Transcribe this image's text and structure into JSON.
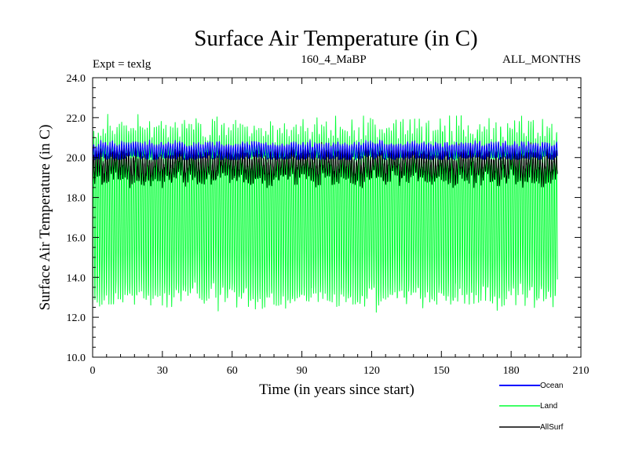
{
  "chart_data": {
    "type": "line",
    "title": "Surface Air Temperature (in C)",
    "subtitle_left": "Expt = texlg",
    "subtitle_center": "160_4_MaBP",
    "subtitle_right": "ALL_MONTHS",
    "xlabel": "Time (in years since start)",
    "ylabel": "Surface Air Temperature (in C)",
    "xlim": [
      0,
      210
    ],
    "ylim": [
      10.0,
      24.0
    ],
    "xticks": [
      0,
      30,
      60,
      90,
      120,
      150,
      180,
      210
    ],
    "xtick_labels": [
      "0",
      "30",
      "60",
      "90",
      "120",
      "150",
      "180",
      "210"
    ],
    "yticks": [
      10.0,
      12.0,
      14.0,
      16.0,
      18.0,
      20.0,
      22.0,
      24.0
    ],
    "ytick_labels": [
      "10.0",
      "12.0",
      "14.0",
      "16.0",
      "18.0",
      "20.0",
      "22.0",
      "24.0"
    ],
    "x_max_data": 199.9,
    "series": [
      {
        "name": "Land",
        "color": "#00ff33",
        "mean": 17.2,
        "seasonal_amplitude": 4.2,
        "max_observed": 22.6,
        "min_observed": 11.9
      },
      {
        "name": "AllSurf",
        "color": "#000000",
        "mean": 19.6,
        "seasonal_amplitude": 0.6,
        "max_observed": 21.0,
        "min_observed": 18.1
      },
      {
        "name": "Ocean",
        "color": "#0000ff",
        "mean": 20.35,
        "seasonal_amplitude": 0.35,
        "max_observed": 21.1,
        "min_observed": 19.9
      }
    ],
    "legend": [
      {
        "name": "Ocean",
        "color": "#0000ff"
      },
      {
        "name": "Land",
        "color": "#00ff33"
      },
      {
        "name": "AllSurf",
        "color": "#000000"
      }
    ],
    "legend_position": "bottom-right",
    "grid": false
  }
}
